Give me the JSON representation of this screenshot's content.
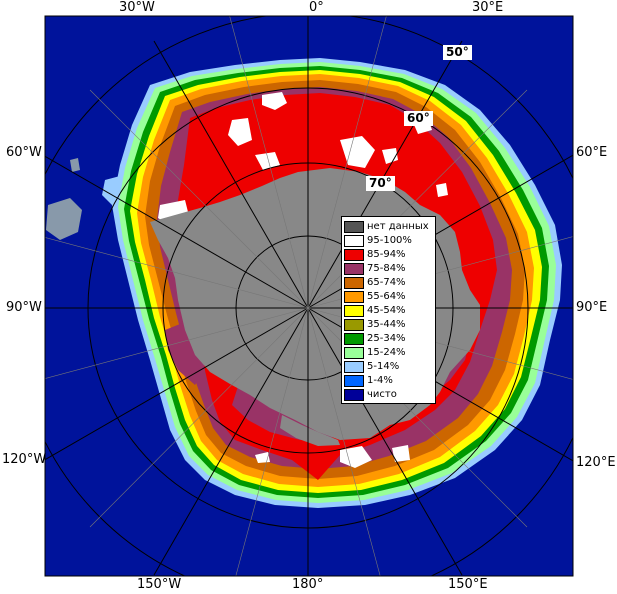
{
  "longitude_labels": {
    "top": [
      "30°W",
      "0°",
      "30°E"
    ],
    "left": [
      "60°W",
      "90°W",
      "120°W"
    ],
    "right": [
      "60°E",
      "90°E",
      "120°E"
    ],
    "bottom": [
      "150°W",
      "180°",
      "150°E"
    ]
  },
  "latitude_labels": [
    "50°",
    "60°",
    "70°"
  ],
  "legend": [
    {
      "label": "нет данных",
      "color": "#555555"
    },
    {
      "label": "95-100%",
      "color": "#ffffff"
    },
    {
      "label": "85-94%",
      "color": "#ee0000"
    },
    {
      "label": "75-84%",
      "color": "#993366"
    },
    {
      "label": "65-74%",
      "color": "#cc6600"
    },
    {
      "label": "55-64%",
      "color": "#ff9900"
    },
    {
      "label": "45-54%",
      "color": "#ffff00"
    },
    {
      "label": "35-44%",
      "color": "#999900"
    },
    {
      "label": "25-34%",
      "color": "#009900"
    },
    {
      "label": "15-24%",
      "color": "#99ff99"
    },
    {
      "label": "5-14%",
      "color": "#99ccff"
    },
    {
      "label": "1-4%",
      "color": "#0066ff"
    },
    {
      "label": "чисто",
      "color": "#000099"
    }
  ],
  "colors": {
    "ocean": "#00139b",
    "land": "#888888",
    "pole_hole": "#888888",
    "no_data": "#555555",
    "grid": "#000000"
  }
}
